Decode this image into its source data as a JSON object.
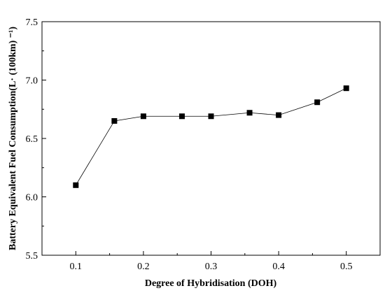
{
  "chart_data": {
    "type": "line",
    "title": "",
    "xlabel": "Degree of Hybridisation (DOH)",
    "ylabel": "Battery Equivalent Fuel Consumption(L· (100km) ⁻¹)",
    "xlim": [
      0.05,
      0.55
    ],
    "ylim": [
      5.5,
      7.5
    ],
    "xticks": [
      "0.1",
      "0.2",
      "0.3",
      "0.4",
      "0.5"
    ],
    "yticks": [
      "5.5",
      "6.0",
      "6.5",
      "7.0",
      "7.5"
    ],
    "grid": false,
    "legend": "none",
    "marker": "square",
    "color": "#000000",
    "series": [
      {
        "x": [
          0.1,
          0.157,
          0.2,
          0.257,
          0.3,
          0.357,
          0.4,
          0.457,
          0.5
        ],
        "values": [
          6.1,
          6.65,
          6.69,
          6.69,
          6.69,
          6.72,
          6.7,
          6.81,
          6.93
        ]
      }
    ]
  }
}
